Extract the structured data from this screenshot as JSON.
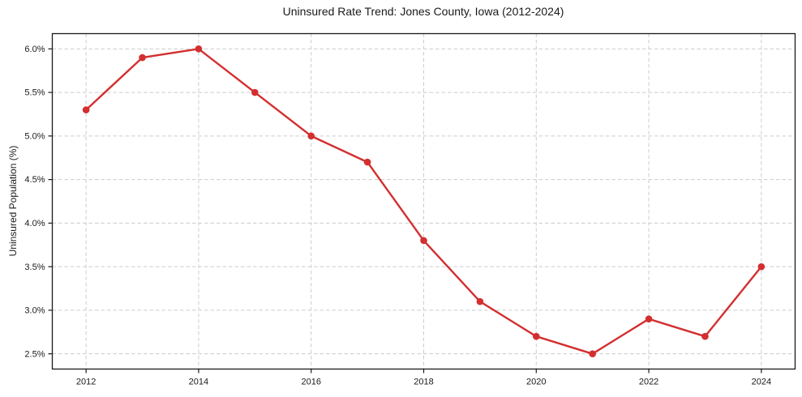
{
  "figure": {
    "background_color": "#ffffff"
  },
  "chart_data": {
    "type": "line",
    "title": "Uninsured Rate Trend: Jones County, Iowa (2012-2024)",
    "xlabel": "",
    "ylabel": "Uninsured Population (%)",
    "x": [
      2012,
      2013,
      2014,
      2015,
      2016,
      2017,
      2018,
      2019,
      2020,
      2021,
      2022,
      2023,
      2024
    ],
    "series": [
      {
        "name": "Uninsured Rate",
        "values": [
          5.3,
          5.9,
          6.0,
          5.5,
          5.0,
          4.7,
          3.8,
          3.1,
          2.7,
          2.5,
          2.9,
          2.7,
          3.5
        ]
      }
    ],
    "x_ticks": [
      2012,
      2014,
      2016,
      2018,
      2020,
      2022,
      2024
    ],
    "x_tick_labels": [
      "2012",
      "2014",
      "2016",
      "2018",
      "2020",
      "2022",
      "2024"
    ],
    "y_ticks": [
      2.5,
      3.0,
      3.5,
      4.0,
      4.5,
      5.0,
      5.5,
      6.0
    ],
    "y_tick_labels": [
      "2.5%",
      "3.0%",
      "3.5%",
      "4.0%",
      "4.5%",
      "5.0%",
      "5.5%",
      "6.0%"
    ],
    "xlim": [
      2011.4,
      2024.6
    ],
    "ylim": [
      2.325,
      6.175
    ],
    "grid": true,
    "grid_style": "dashed",
    "legend_position": "none",
    "line_color": "#d32f30",
    "marker_color": "#d32f30",
    "grid_color": "#cccccc",
    "axis_color": "#1a1a1a",
    "tick_label_color": "#1a1a1a"
  }
}
